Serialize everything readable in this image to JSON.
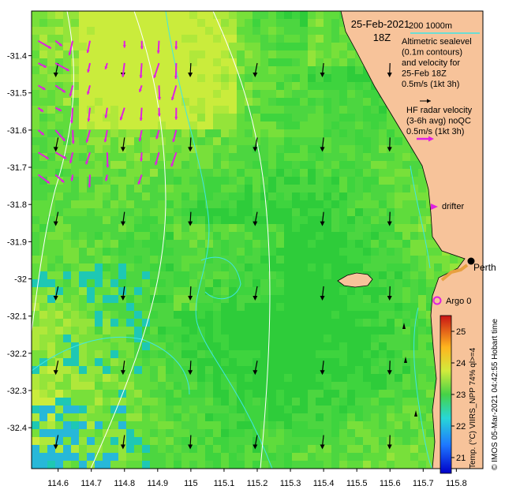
{
  "header": {
    "date": "25-Feb-2021",
    "time": "18Z",
    "scale_label": "200  1000m"
  },
  "legend": {
    "altimetric": [
      "Altimetric sealevel",
      "(0.1m contours)",
      "and velocity for",
      "25-Feb 18Z",
      "0.5m/s (1kt 3h)"
    ],
    "hf_radar": [
      "HF radar velocity",
      "(3-6h avg) noQC",
      "0.5m/s (1kt 3h)"
    ],
    "drifter": "drifter",
    "argo": "Argo 0",
    "city": "Perth"
  },
  "colorbar": {
    "label": "Temp. (°C) VIIRS_NPP 74% ql>=4",
    "ticks": [
      "21",
      "22",
      "23",
      "24",
      "25"
    ],
    "range": [
      20.5,
      25.5
    ]
  },
  "credit": "© IMOS 05-Mar-2021 04:42:55 Hobart time",
  "axes": {
    "x_ticks": [
      "114.6",
      "114.7",
      "114.8",
      "114.9",
      "115",
      "115.1",
      "115.2",
      "115.3",
      "115.4",
      "115.5",
      "115.6",
      "115.7",
      "115.8"
    ],
    "y_ticks": [
      "-31.4",
      "-31.5",
      "-31.6",
      "-31.7",
      "-31.8",
      "-31.9",
      "-32",
      "-32.1",
      "-32.2",
      "-32.3",
      "-32.4"
    ],
    "x_range": [
      114.52,
      115.88
    ],
    "y_range": [
      -32.51,
      -31.28
    ]
  },
  "colors": {
    "land": "#f7c39a",
    "radar_arrow": "#e020e0",
    "altimetry_arrow": "#000000",
    "contour": "#ffffff",
    "isobath": "#40e0e0"
  },
  "map_data": {
    "altimetry_arrow_grid": {
      "lon": [
        114.6,
        114.8,
        115.0,
        115.2,
        115.4,
        115.6
      ],
      "lat": [
        -31.42,
        -31.62,
        -31.82,
        -32.02,
        -32.22,
        -32.42
      ]
    },
    "radar_region": {
      "lon": [
        114.52,
        114.98
      ],
      "lat": [
        -31.76,
        -31.36
      ]
    }
  }
}
